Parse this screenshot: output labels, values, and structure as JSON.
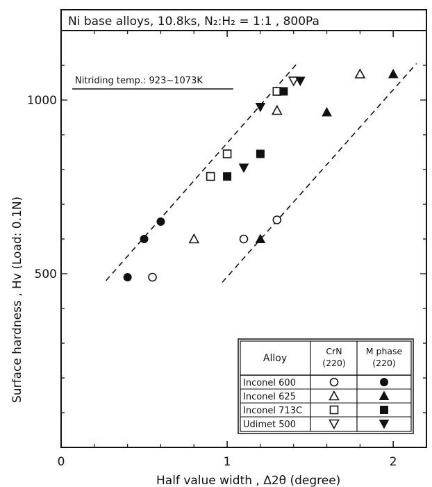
{
  "chart_data": {
    "type": "scatter",
    "title": "Ni base alloys,  10.8ks, N₂:H₂ = 1:1 ,  800Pa",
    "annotation": "Nitriding temp.: 923~1073K",
    "xlabel": "Half value width ,  Δ2θ  (degree)",
    "ylabel": "Surface hardness , Hv   (Load: 0.1N)",
    "xlim": [
      0,
      2.2
    ],
    "ylim": [
      0,
      1200
    ],
    "x_ticks": [
      "0",
      "1",
      "2"
    ],
    "y_ticks": [
      "500",
      "1000"
    ],
    "x_tick_values": [
      0,
      1,
      2
    ],
    "y_tick_values": [
      500,
      1000
    ],
    "grid": false,
    "legend": {
      "placement": "bottom-right",
      "headers": [
        "Alloy",
        "CrN\n(220)",
        "M phase\n(220)"
      ],
      "rows": [
        {
          "alloy": "Inconel 600",
          "crn_marker": "open-circle",
          "m_marker": "filled-circle"
        },
        {
          "alloy": "Inconel 625",
          "crn_marker": "open-triangle-up",
          "m_marker": "filled-triangle-up"
        },
        {
          "alloy": "Inconel 713C",
          "crn_marker": "open-square",
          "m_marker": "filled-square"
        },
        {
          "alloy": "Udimet 500",
          "crn_marker": "open-triangle-down",
          "m_marker": "filled-triangle-down"
        }
      ]
    },
    "series": [
      {
        "alloy": "Inconel 600",
        "phase": "CrN (220)",
        "marker": "open-circle",
        "points": [
          [
            0.55,
            490
          ],
          [
            1.1,
            600
          ],
          [
            1.3,
            655
          ]
        ]
      },
      {
        "alloy": "Inconel 600",
        "phase": "M phase (220)",
        "marker": "filled-circle",
        "points": [
          [
            0.4,
            490
          ],
          [
            0.5,
            600
          ],
          [
            0.6,
            650
          ]
        ]
      },
      {
        "alloy": "Inconel 625",
        "phase": "CrN (220)",
        "marker": "open-triangle-up",
        "points": [
          [
            0.8,
            600
          ],
          [
            1.3,
            970
          ],
          [
            1.8,
            1075
          ]
        ]
      },
      {
        "alloy": "Inconel 625",
        "phase": "M phase (220)",
        "marker": "filled-triangle-up",
        "points": [
          [
            1.2,
            600
          ],
          [
            1.6,
            965
          ],
          [
            2.0,
            1075
          ]
        ]
      },
      {
        "alloy": "Inconel 713C",
        "phase": "CrN (220)",
        "marker": "open-square",
        "points": [
          [
            0.9,
            780
          ],
          [
            1.0,
            845
          ],
          [
            1.3,
            1025
          ]
        ]
      },
      {
        "alloy": "Inconel 713C",
        "phase": "M phase (220)",
        "marker": "filled-square",
        "points": [
          [
            1.0,
            780
          ],
          [
            1.2,
            845
          ],
          [
            1.34,
            1025
          ]
        ]
      },
      {
        "alloy": "Udimet 500",
        "phase": "CrN (220)",
        "marker": "open-triangle-down",
        "points": [
          [
            1.4,
            1055
          ]
        ]
      },
      {
        "alloy": "Udimet 500",
        "phase": "M phase (220)",
        "marker": "filled-triangle-down",
        "points": [
          [
            1.1,
            805
          ],
          [
            1.2,
            980
          ],
          [
            1.44,
            1055
          ]
        ]
      }
    ],
    "trend_lines": [
      {
        "style": "dashed",
        "points": [
          [
            0.27,
            480
          ],
          [
            1.43,
            1110
          ]
        ]
      },
      {
        "style": "dashed",
        "points": [
          [
            0.97,
            475
          ],
          [
            2.14,
            1105
          ]
        ]
      }
    ]
  }
}
